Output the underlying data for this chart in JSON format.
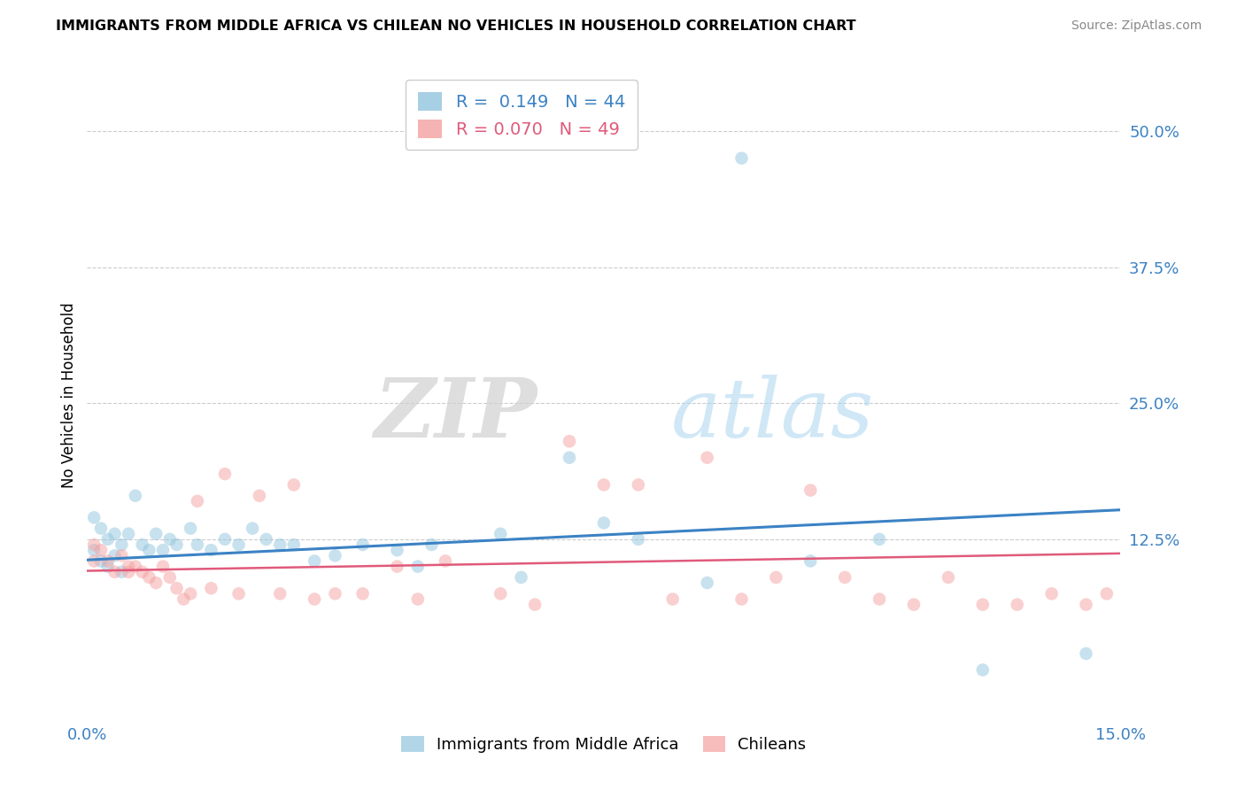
{
  "title": "IMMIGRANTS FROM MIDDLE AFRICA VS CHILEAN NO VEHICLES IN HOUSEHOLD CORRELATION CHART",
  "source": "Source: ZipAtlas.com",
  "ylabel_label": "No Vehicles in Household",
  "ytick_labels": [
    "50.0%",
    "37.5%",
    "25.0%",
    "12.5%"
  ],
  "ytick_values": [
    0.5,
    0.375,
    0.25,
    0.125
  ],
  "xlim": [
    0.0,
    0.15
  ],
  "ylim": [
    -0.04,
    0.555
  ],
  "blue_color": "#92c5de",
  "pink_color": "#f4a0a0",
  "blue_line_color": "#3b82c4",
  "pink_line_color": "#e05a7a",
  "legend_blue_R": "0.149",
  "legend_blue_N": "44",
  "legend_pink_R": "0.070",
  "legend_pink_N": "49",
  "blue_scatter_x": [
    0.001,
    0.001,
    0.002,
    0.002,
    0.003,
    0.003,
    0.004,
    0.004,
    0.005,
    0.005,
    0.006,
    0.007,
    0.008,
    0.009,
    0.01,
    0.011,
    0.012,
    0.013,
    0.015,
    0.016,
    0.018,
    0.02,
    0.022,
    0.024,
    0.026,
    0.028,
    0.03,
    0.033,
    0.036,
    0.04,
    0.045,
    0.048,
    0.06,
    0.07,
    0.075,
    0.08,
    0.09,
    0.095,
    0.105,
    0.115,
    0.13,
    0.145,
    0.063,
    0.05
  ],
  "blue_scatter_y": [
    0.145,
    0.115,
    0.135,
    0.105,
    0.125,
    0.1,
    0.13,
    0.11,
    0.12,
    0.095,
    0.13,
    0.165,
    0.12,
    0.115,
    0.13,
    0.115,
    0.125,
    0.12,
    0.135,
    0.12,
    0.115,
    0.125,
    0.12,
    0.135,
    0.125,
    0.12,
    0.12,
    0.105,
    0.11,
    0.12,
    0.115,
    0.1,
    0.13,
    0.2,
    0.14,
    0.125,
    0.085,
    0.475,
    0.105,
    0.125,
    0.005,
    0.02,
    0.09,
    0.12
  ],
  "pink_scatter_x": [
    0.001,
    0.001,
    0.002,
    0.003,
    0.004,
    0.005,
    0.006,
    0.006,
    0.007,
    0.008,
    0.009,
    0.01,
    0.011,
    0.012,
    0.013,
    0.014,
    0.015,
    0.016,
    0.018,
    0.02,
    0.022,
    0.025,
    0.028,
    0.03,
    0.033,
    0.036,
    0.04,
    0.045,
    0.048,
    0.052,
    0.06,
    0.065,
    0.07,
    0.075,
    0.08,
    0.085,
    0.09,
    0.095,
    0.1,
    0.105,
    0.11,
    0.115,
    0.12,
    0.125,
    0.13,
    0.135,
    0.14,
    0.145,
    0.148
  ],
  "pink_scatter_y": [
    0.12,
    0.105,
    0.115,
    0.105,
    0.095,
    0.11,
    0.1,
    0.095,
    0.1,
    0.095,
    0.09,
    0.085,
    0.1,
    0.09,
    0.08,
    0.07,
    0.075,
    0.16,
    0.08,
    0.185,
    0.075,
    0.165,
    0.075,
    0.175,
    0.07,
    0.075,
    0.075,
    0.1,
    0.07,
    0.105,
    0.075,
    0.065,
    0.215,
    0.175,
    0.175,
    0.07,
    0.2,
    0.07,
    0.09,
    0.17,
    0.09,
    0.07,
    0.065,
    0.09,
    0.065,
    0.065,
    0.075,
    0.065,
    0.075
  ],
  "blue_trend_x": [
    0.0,
    0.15
  ],
  "blue_trend_y_start": 0.106,
  "blue_trend_y_end": 0.152,
  "pink_trend_y_start": 0.096,
  "pink_trend_y_end": 0.112,
  "watermark_zip": "ZIP",
  "watermark_atlas": "atlas",
  "marker_size": 110,
  "alpha_scatter": 0.5
}
